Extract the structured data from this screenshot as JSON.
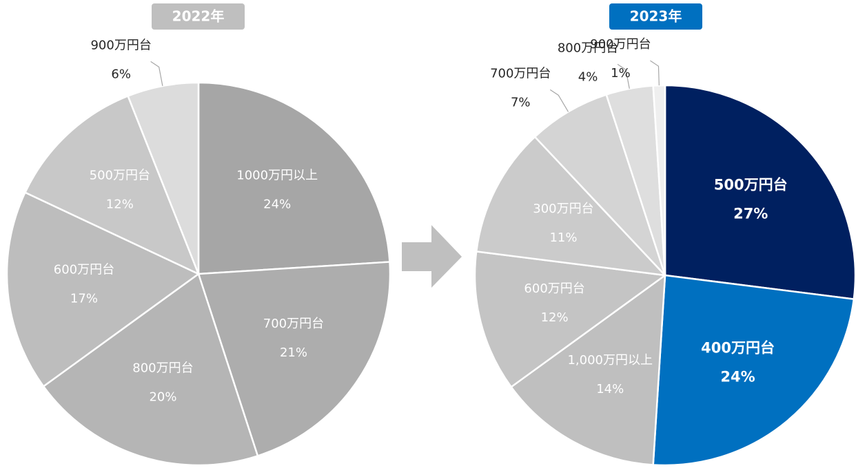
{
  "chart_data": [
    {
      "type": "pie",
      "title": "2022年",
      "categories": [
        "1000万円以上",
        "700万円台",
        "800万円台",
        "600万円台",
        "500万円台",
        "900万円台"
      ],
      "values": [
        24,
        21,
        20,
        17,
        12,
        6
      ],
      "value_labels": [
        "24%",
        "21%",
        "20%",
        "17%",
        "12%",
        "6%"
      ],
      "colors": [
        "#a6a6a6",
        "#adadad",
        "#b5b5b5",
        "#bdbdbd",
        "#c8c8c8",
        "#dcdcdc"
      ]
    },
    {
      "type": "pie",
      "title": "2023年",
      "categories": [
        "500万円台",
        "400万円台",
        "1,000万円以上",
        "600万円台",
        "300万円台",
        "700万円台",
        "800万円台",
        "900万円台"
      ],
      "values": [
        27,
        24,
        14,
        12,
        11,
        7,
        4,
        1
      ],
      "value_labels": [
        "27%",
        "24%",
        "14%",
        "12%",
        "11%",
        "7%",
        "4%",
        "1%"
      ],
      "colors": [
        "#002060",
        "#0070c0",
        "#bfbfbf",
        "#c4c4c4",
        "#cbcbcb",
        "#d4d4d4",
        "#dedede",
        "#efefef"
      ]
    }
  ]
}
